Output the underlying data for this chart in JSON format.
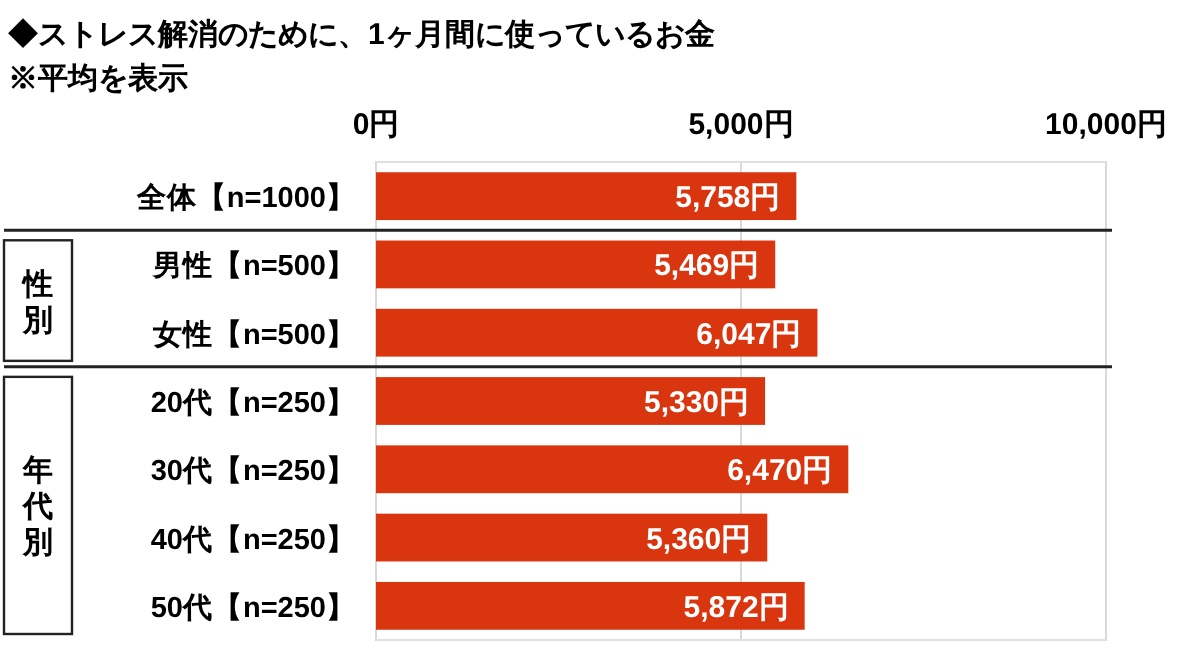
{
  "chart_data": {
    "type": "bar",
    "orientation": "horizontal",
    "title": "◆ストレス解消のために、1ヶ月間に使っているお金",
    "subtitle": "※平均を表示",
    "categories": [
      "全体【n=1000】",
      "男性【n=500】",
      "女性【n=500】",
      "20代【n=250】",
      "30代【n=250】",
      "40代【n=250】",
      "50代【n=250】"
    ],
    "values": [
      5758,
      5469,
      6047,
      5330,
      6470,
      5360,
      5872
    ],
    "value_labels": [
      "5,758円",
      "5,469円",
      "6,047円",
      "5,330円",
      "6,470円",
      "5,360円",
      "5,872円"
    ],
    "color": "#d9360f",
    "xlim": [
      0,
      10000
    ],
    "xticks": [
      {
        "value": 0,
        "label": "0円"
      },
      {
        "value": 5000,
        "label": "5,000円"
      },
      {
        "value": 10000,
        "label": "10,000円"
      }
    ],
    "ref_lines": [
      {
        "axis": "x",
        "value": 5000,
        "color": "#d9d9d9"
      }
    ],
    "annotations": [
      "性別",
      "年代別"
    ]
  }
}
